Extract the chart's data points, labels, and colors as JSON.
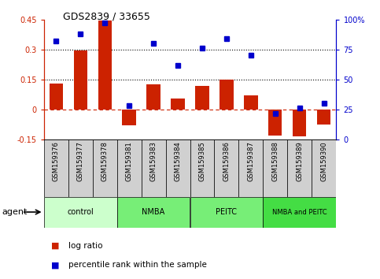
{
  "title": "GDS2839 / 33655",
  "categories": [
    "GSM159376",
    "GSM159377",
    "GSM159378",
    "GSM159381",
    "GSM159383",
    "GSM159384",
    "GSM159385",
    "GSM159386",
    "GSM159387",
    "GSM159388",
    "GSM159389",
    "GSM159390"
  ],
  "log_ratio": [
    0.13,
    0.295,
    0.445,
    -0.08,
    0.125,
    0.055,
    0.12,
    0.15,
    0.07,
    -0.13,
    -0.135,
    -0.075
  ],
  "percentile_rank": [
    82,
    88,
    97,
    28,
    80,
    62,
    76,
    84,
    70,
    22,
    26,
    30
  ],
  "groups": [
    {
      "label": "control",
      "start": 0,
      "end": 3,
      "color": "#d5f5d5"
    },
    {
      "label": "NMBA",
      "start": 3,
      "end": 6,
      "color": "#66dd66"
    },
    {
      "label": "PEITC",
      "start": 6,
      "end": 9,
      "color": "#66dd66"
    },
    {
      "label": "NMBA and PEITC",
      "start": 9,
      "end": 12,
      "color": "#44cc44"
    }
  ],
  "ylim_left": [
    -0.15,
    0.45
  ],
  "ylim_right": [
    0,
    100
  ],
  "yticks_left": [
    -0.15,
    0.0,
    0.15,
    0.3,
    0.45
  ],
  "yticks_right": [
    0,
    25,
    50,
    75,
    100
  ],
  "bar_color": "#cc2200",
  "dot_color": "#0000cc",
  "hline_y": [
    0.15,
    0.3
  ],
  "bar_width": 0.55,
  "agent_label": "agent",
  "legend_bar_label": "log ratio",
  "legend_dot_label": "percentile rank within the sample",
  "cell_color": "#d0d0d0"
}
